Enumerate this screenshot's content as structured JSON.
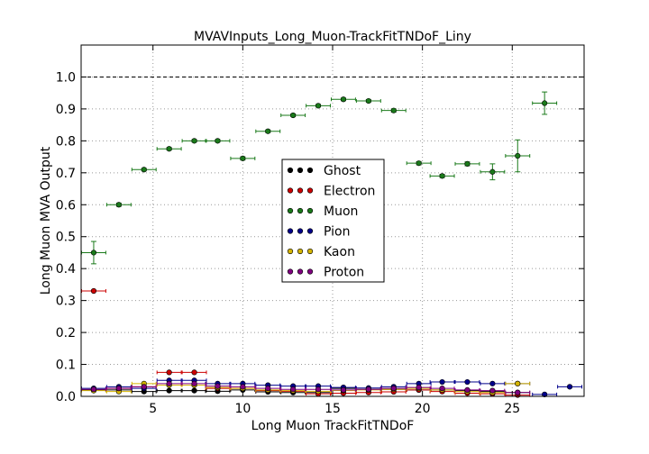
{
  "chart_data": {
    "type": "scatter",
    "title": "MVAVInputs_Long_Muon-TrackFitTNDoF_Liny",
    "xlabel": "Long Muon TrackFitTNDoF",
    "ylabel": "Long Muon MVA Output",
    "xlim": [
      1,
      29
    ],
    "ylim": [
      0,
      1.1
    ],
    "xticks": [
      5,
      10,
      15,
      20,
      25
    ],
    "yticks": [
      0.0,
      0.1,
      0.2,
      0.3,
      0.4,
      0.5,
      0.6,
      0.7,
      0.8,
      0.9,
      1.0
    ],
    "xtick_labels": [
      "5",
      "10",
      "15",
      "20",
      "25"
    ],
    "ytick_labels": [
      "0.0",
      "0.1",
      "0.2",
      "0.3",
      "0.4",
      "0.5",
      "0.6",
      "0.7",
      "0.8",
      "0.9",
      "1.0"
    ],
    "grid": true,
    "reference_line_y": 1.0,
    "legend_position": "center",
    "bin_width": 1.35,
    "series": [
      {
        "name": "Ghost",
        "color": "#000000",
        "points": [
          {
            "x": 1.7,
            "y": 0.02
          },
          {
            "x": 3.1,
            "y": 0.02
          },
          {
            "x": 4.5,
            "y": 0.015
          },
          {
            "x": 5.9,
            "y": 0.018
          },
          {
            "x": 7.3,
            "y": 0.018
          },
          {
            "x": 8.6,
            "y": 0.016
          },
          {
            "x": 10.0,
            "y": 0.02
          },
          {
            "x": 11.4,
            "y": 0.014
          },
          {
            "x": 12.8,
            "y": 0.012
          },
          {
            "x": 14.2,
            "y": 0.012
          },
          {
            "x": 15.6,
            "y": 0.025
          },
          {
            "x": 17.0,
            "y": 0.022
          },
          {
            "x": 18.4,
            "y": 0.022
          },
          {
            "x": 19.8,
            "y": 0.02
          },
          {
            "x": 21.1,
            "y": 0.02
          },
          {
            "x": 22.5,
            "y": 0.018
          },
          {
            "x": 23.9,
            "y": 0.015
          },
          {
            "x": 25.3,
            "y": 0.012
          }
        ]
      },
      {
        "name": "Electron",
        "color": "#cc0000",
        "points": [
          {
            "x": 1.7,
            "y": 0.33
          },
          {
            "x": 3.1,
            "y": 0.025
          },
          {
            "x": 4.5,
            "y": 0.03
          },
          {
            "x": 5.9,
            "y": 0.075
          },
          {
            "x": 7.3,
            "y": 0.075
          },
          {
            "x": 8.6,
            "y": 0.025
          },
          {
            "x": 10.0,
            "y": 0.025
          },
          {
            "x": 11.4,
            "y": 0.018
          },
          {
            "x": 12.8,
            "y": 0.016
          },
          {
            "x": 14.2,
            "y": 0.008
          },
          {
            "x": 15.6,
            "y": 0.01
          },
          {
            "x": 17.0,
            "y": 0.012
          },
          {
            "x": 18.4,
            "y": 0.014
          },
          {
            "x": 19.8,
            "y": 0.02
          },
          {
            "x": 21.1,
            "y": 0.015
          },
          {
            "x": 22.5,
            "y": 0.01
          },
          {
            "x": 23.9,
            "y": 0.008
          },
          {
            "x": 25.3,
            "y": 0.004
          }
        ]
      },
      {
        "name": "Muon",
        "color": "#1a7a1a",
        "points": [
          {
            "x": 1.7,
            "y": 0.45,
            "err": 0.035
          },
          {
            "x": 3.1,
            "y": 0.6,
            "err": 0.005
          },
          {
            "x": 4.5,
            "y": 0.71,
            "err": 0.004
          },
          {
            "x": 5.9,
            "y": 0.775,
            "err": 0.004
          },
          {
            "x": 7.3,
            "y": 0.8,
            "err": 0.004
          },
          {
            "x": 8.6,
            "y": 0.8,
            "err": 0.004
          },
          {
            "x": 10.0,
            "y": 0.745,
            "err": 0.005
          },
          {
            "x": 11.4,
            "y": 0.83,
            "err": 0.004
          },
          {
            "x": 12.8,
            "y": 0.88,
            "err": 0.004
          },
          {
            "x": 14.2,
            "y": 0.91,
            "err": 0.004
          },
          {
            "x": 15.6,
            "y": 0.93,
            "err": 0.004
          },
          {
            "x": 17.0,
            "y": 0.925,
            "err": 0.004
          },
          {
            "x": 18.4,
            "y": 0.895,
            "err": 0.005
          },
          {
            "x": 19.8,
            "y": 0.73,
            "err": 0.005
          },
          {
            "x": 21.1,
            "y": 0.69,
            "err": 0.005
          },
          {
            "x": 22.5,
            "y": 0.728,
            "err": 0.006
          },
          {
            "x": 23.9,
            "y": 0.703,
            "err": 0.025
          },
          {
            "x": 25.3,
            "y": 0.753,
            "err": 0.05
          },
          {
            "x": 26.8,
            "y": 0.918,
            "err": 0.035
          }
        ]
      },
      {
        "name": "Pion",
        "color": "#00008b",
        "points": [
          {
            "x": 1.7,
            "y": 0.025
          },
          {
            "x": 3.1,
            "y": 0.03
          },
          {
            "x": 4.5,
            "y": 0.025
          },
          {
            "x": 5.9,
            "y": 0.05
          },
          {
            "x": 7.3,
            "y": 0.05
          },
          {
            "x": 8.6,
            "y": 0.04
          },
          {
            "x": 10.0,
            "y": 0.04
          },
          {
            "x": 11.4,
            "y": 0.035
          },
          {
            "x": 12.8,
            "y": 0.032
          },
          {
            "x": 14.2,
            "y": 0.032
          },
          {
            "x": 15.6,
            "y": 0.028
          },
          {
            "x": 17.0,
            "y": 0.026
          },
          {
            "x": 18.4,
            "y": 0.03
          },
          {
            "x": 19.8,
            "y": 0.04
          },
          {
            "x": 21.1,
            "y": 0.045
          },
          {
            "x": 22.5,
            "y": 0.045
          },
          {
            "x": 23.9,
            "y": 0.04
          },
          {
            "x": 25.3,
            "y": 0.04
          },
          {
            "x": 26.8,
            "y": 0.006
          },
          {
            "x": 28.2,
            "y": 0.03
          }
        ]
      },
      {
        "name": "Kaon",
        "color": "#d4b400",
        "points": [
          {
            "x": 1.7,
            "y": 0.018
          },
          {
            "x": 3.1,
            "y": 0.015
          },
          {
            "x": 4.5,
            "y": 0.04
          },
          {
            "x": 5.9,
            "y": 0.035
          },
          {
            "x": 7.3,
            "y": 0.035
          },
          {
            "x": 8.6,
            "y": 0.028
          },
          {
            "x": 10.0,
            "y": 0.025
          },
          {
            "x": 11.4,
            "y": 0.02
          },
          {
            "x": 12.8,
            "y": 0.018
          },
          {
            "x": 14.2,
            "y": 0.016
          },
          {
            "x": 15.6,
            "y": 0.018
          },
          {
            "x": 17.0,
            "y": 0.02
          },
          {
            "x": 18.4,
            "y": 0.022
          },
          {
            "x": 19.8,
            "y": 0.025
          },
          {
            "x": 21.1,
            "y": 0.02
          },
          {
            "x": 22.5,
            "y": 0.015
          },
          {
            "x": 23.9,
            "y": 0.012
          },
          {
            "x": 25.3,
            "y": 0.04
          }
        ]
      },
      {
        "name": "Proton",
        "color": "#800080",
        "points": [
          {
            "x": 1.7,
            "y": 0.022
          },
          {
            "x": 3.1,
            "y": 0.025
          },
          {
            "x": 4.5,
            "y": 0.03
          },
          {
            "x": 5.9,
            "y": 0.04
          },
          {
            "x": 7.3,
            "y": 0.04
          },
          {
            "x": 8.6,
            "y": 0.032
          },
          {
            "x": 10.0,
            "y": 0.03
          },
          {
            "x": 11.4,
            "y": 0.025
          },
          {
            "x": 12.8,
            "y": 0.022
          },
          {
            "x": 14.2,
            "y": 0.022
          },
          {
            "x": 15.6,
            "y": 0.02
          },
          {
            "x": 17.0,
            "y": 0.022
          },
          {
            "x": 18.4,
            "y": 0.025
          },
          {
            "x": 19.8,
            "y": 0.028
          },
          {
            "x": 21.1,
            "y": 0.025
          },
          {
            "x": 22.5,
            "y": 0.02
          },
          {
            "x": 23.9,
            "y": 0.018
          },
          {
            "x": 25.3,
            "y": 0.012
          }
        ]
      }
    ]
  }
}
